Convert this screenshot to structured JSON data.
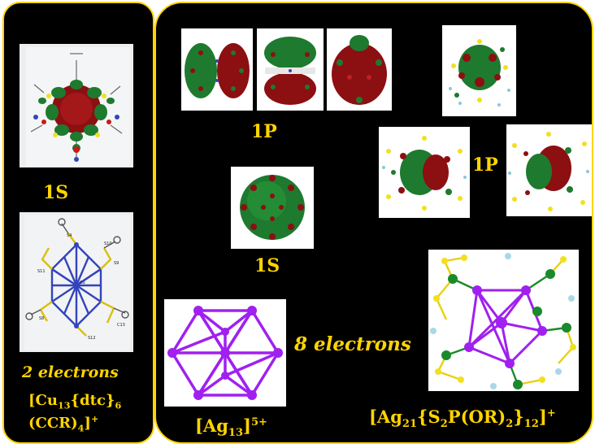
{
  "left_panel": {
    "label_1s": "1S",
    "electrons": "2 electrons",
    "formula_line1": {
      "a": "[Cu",
      "sub1": "13",
      "b": "{dtc}",
      "sub2": "6"
    },
    "formula_line2": {
      "a": "(CCR)",
      "sub1": "4",
      "b": "]",
      "sup1": "+"
    },
    "structure_atom_labels": [
      "S10",
      "S9",
      "S11",
      "Cu",
      "S8",
      "S4",
      "C13",
      "S12"
    ]
  },
  "right_panel": {
    "label_1p_top": "1P",
    "label_1p_right": "1P",
    "label_1s": "1S",
    "electrons": "8 electrons",
    "ag13": {
      "a": "[Ag",
      "sub1": "13",
      "b": "]",
      "sup1": "5+"
    },
    "ag21": {
      "a": "[Ag",
      "sub1": "21",
      "b": "{S",
      "sub2": "2",
      "c": "P(OR)",
      "sub3": "2",
      "d": "}",
      "sub4": "12",
      "e": "]",
      "sup1": "+"
    }
  },
  "colors": {
    "background": "#000000",
    "border": "#ffd400",
    "label": "#ffd400",
    "orbital_green": "#1e7a2e",
    "orbital_red": "#8c0f12",
    "silver_purple": "#a020f0",
    "copper_blue": "#3344bb",
    "sulfur_yellow": "#f2e020",
    "phosphorus_green": "#1a8a2a"
  }
}
